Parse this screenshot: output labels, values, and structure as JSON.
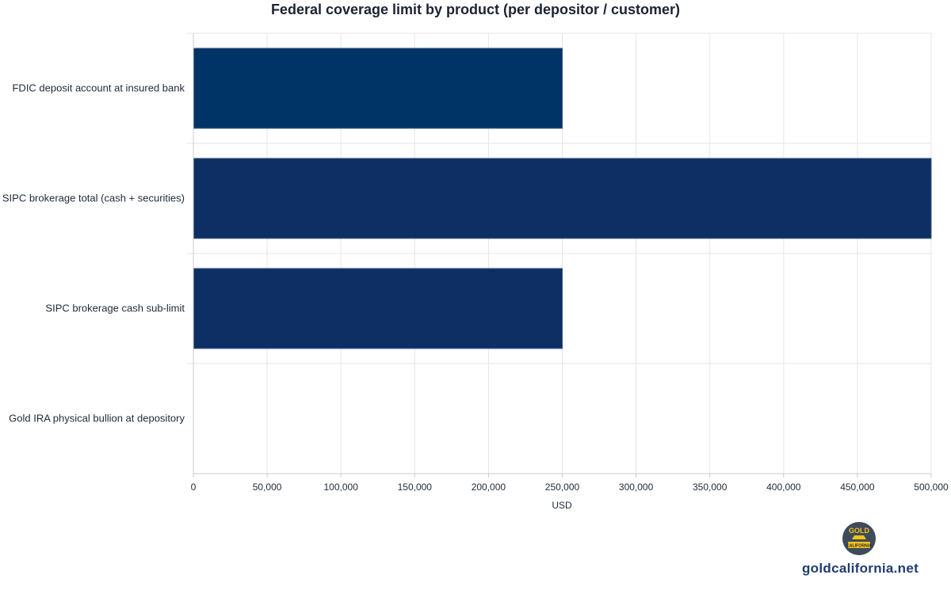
{
  "chart_data": {
    "type": "bar",
    "orientation": "horizontal",
    "title": "Federal coverage limit by product (per depositor / customer)",
    "xlabel": "USD",
    "ylabel": "",
    "categories": [
      "FDIC deposit account at insured bank",
      "SIPC brokerage total (cash + securities)",
      "SIPC brokerage cash sub-limit",
      "Gold IRA physical bullion at depository"
    ],
    "values": [
      250000,
      500000,
      250000,
      0
    ],
    "colors": [
      "#003366",
      "#0d2f63",
      "#0d2f63",
      "#0d2f63"
    ],
    "xlim": [
      0,
      500000
    ],
    "xticks": [
      0,
      50000,
      100000,
      150000,
      200000,
      250000,
      300000,
      350000,
      400000,
      450000,
      500000
    ],
    "xtick_labels": [
      "0",
      "50,000",
      "100,000",
      "150,000",
      "200,000",
      "250,000",
      "300,000",
      "350,000",
      "400,000",
      "450,000",
      "500,000"
    ],
    "grid": true,
    "legend": "none"
  },
  "brand": {
    "url": "goldcalifornia.net",
    "logo_text_top": "GOLD",
    "logo_text_bottom": "CALIFORNIA",
    "logo_colors": {
      "circle": "#3e4b5c",
      "gold": "#f2c21b",
      "banner": "#1f2a3a"
    }
  }
}
